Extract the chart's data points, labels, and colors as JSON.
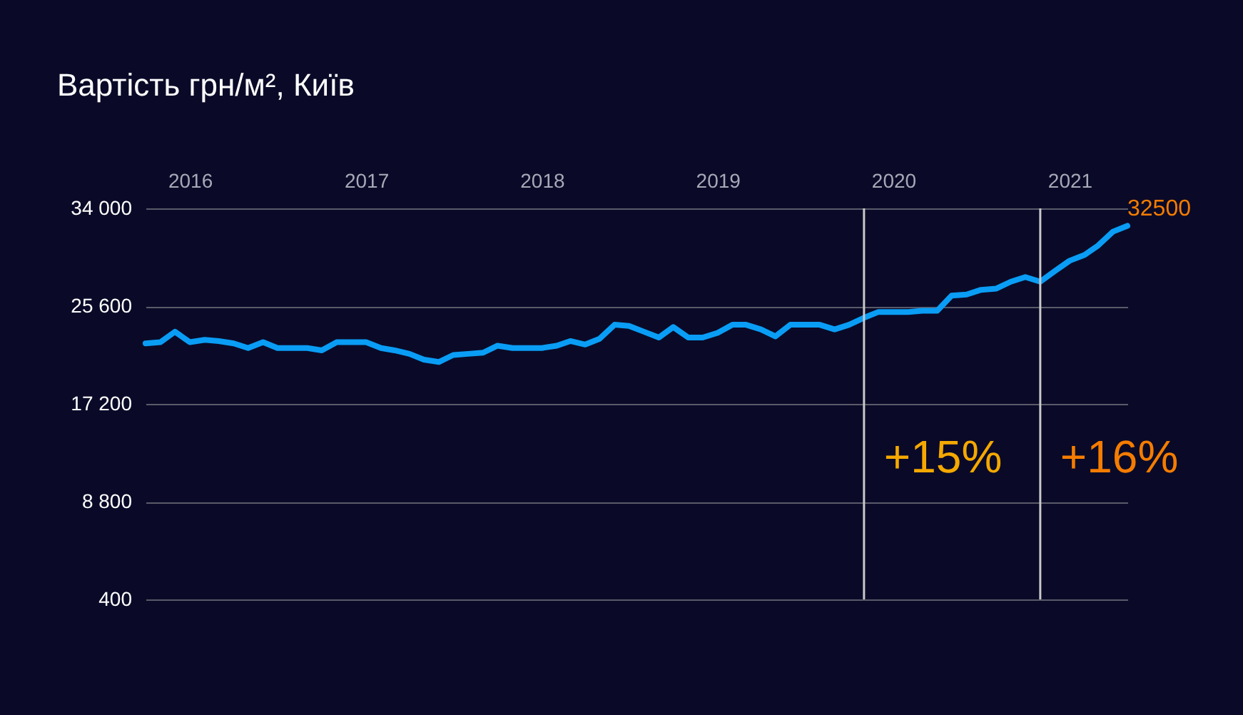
{
  "chart_data": {
    "type": "line",
    "title": "Вартість грн/м², Київ",
    "x": [
      "2015-10",
      "2015-11",
      "2015-12",
      "2016-01",
      "2016-02",
      "2016-03",
      "2016-04",
      "2016-05",
      "2016-06",
      "2016-07",
      "2016-08",
      "2016-09",
      "2016-10",
      "2016-11",
      "2016-12",
      "2017-01",
      "2017-02",
      "2017-03",
      "2017-04",
      "2017-05",
      "2017-06",
      "2017-07",
      "2017-08",
      "2017-09",
      "2017-10",
      "2017-11",
      "2017-12",
      "2018-01",
      "2018-02",
      "2018-03",
      "2018-04",
      "2018-05",
      "2018-06",
      "2018-07",
      "2018-08",
      "2018-09",
      "2018-10",
      "2018-11",
      "2018-12",
      "2019-01",
      "2019-02",
      "2019-03",
      "2019-04",
      "2019-05",
      "2019-06",
      "2019-07",
      "2019-08",
      "2019-09",
      "2019-10",
      "2019-11",
      "2019-12",
      "2020-01",
      "2020-02",
      "2020-03",
      "2020-04",
      "2020-05",
      "2020-06",
      "2020-07",
      "2020-08",
      "2020-09",
      "2020-10",
      "2020-11",
      "2020-12",
      "2021-01",
      "2021-02",
      "2021-03",
      "2021-04",
      "2021-05"
    ],
    "series": [
      {
        "color": "#0a9df5",
        "values": [
          22400,
          22500,
          23400,
          22500,
          22700,
          22600,
          22400,
          22000,
          22500,
          22000,
          22000,
          22000,
          21800,
          22500,
          22500,
          22500,
          22000,
          21800,
          21500,
          21000,
          20800,
          21400,
          21500,
          21600,
          22200,
          22000,
          22000,
          22000,
          22200,
          22600,
          22300,
          22800,
          24000,
          23900,
          23400,
          22900,
          23800,
          22900,
          22900,
          23300,
          24000,
          24000,
          23600,
          23000,
          24000,
          24000,
          24000,
          23600,
          24000,
          24600,
          25100,
          25100,
          25100,
          25200,
          25200,
          26500,
          26600,
          27000,
          27100,
          27700,
          28100,
          27700,
          28600,
          29500,
          30000,
          30800,
          32000,
          32500
        ],
        "value_labels": [
          null,
          null,
          null,
          null,
          null,
          null,
          null,
          null,
          null,
          null,
          null,
          null,
          null,
          null,
          null,
          null,
          null,
          null,
          null,
          null,
          null,
          null,
          null,
          null,
          null,
          null,
          null,
          null,
          null,
          null,
          null,
          null,
          null,
          null,
          null,
          null,
          null,
          null,
          null,
          null,
          null,
          null,
          null,
          null,
          null,
          null,
          null,
          null,
          null,
          null,
          null,
          null,
          null,
          null,
          null,
          null,
          null,
          null,
          null,
          null,
          null,
          null,
          null,
          null,
          null,
          null,
          null,
          "32500"
        ]
      }
    ],
    "xlim": [
      "2015-10",
      "2021-05"
    ],
    "xticks": [
      "2016",
      "2017",
      "2018",
      "2019",
      "2020",
      "2021"
    ],
    "ylim": [
      400,
      34000
    ],
    "yticks": [
      {
        "value": 400,
        "label": "400"
      },
      {
        "value": 8800,
        "label": "8 800"
      },
      {
        "value": 17200,
        "label": "17 200"
      },
      {
        "value": 25600,
        "label": "25 600"
      },
      {
        "value": 34000,
        "label": "34 000"
      }
    ],
    "grid": "y",
    "ref_lines": [
      {
        "axis": "x",
        "value": "2019-11",
        "color": "#c8c8c8"
      },
      {
        "axis": "x",
        "value": "2020-11",
        "color": "#c8c8c8"
      }
    ],
    "annotations": [
      "+15%",
      "+16%"
    ]
  }
}
